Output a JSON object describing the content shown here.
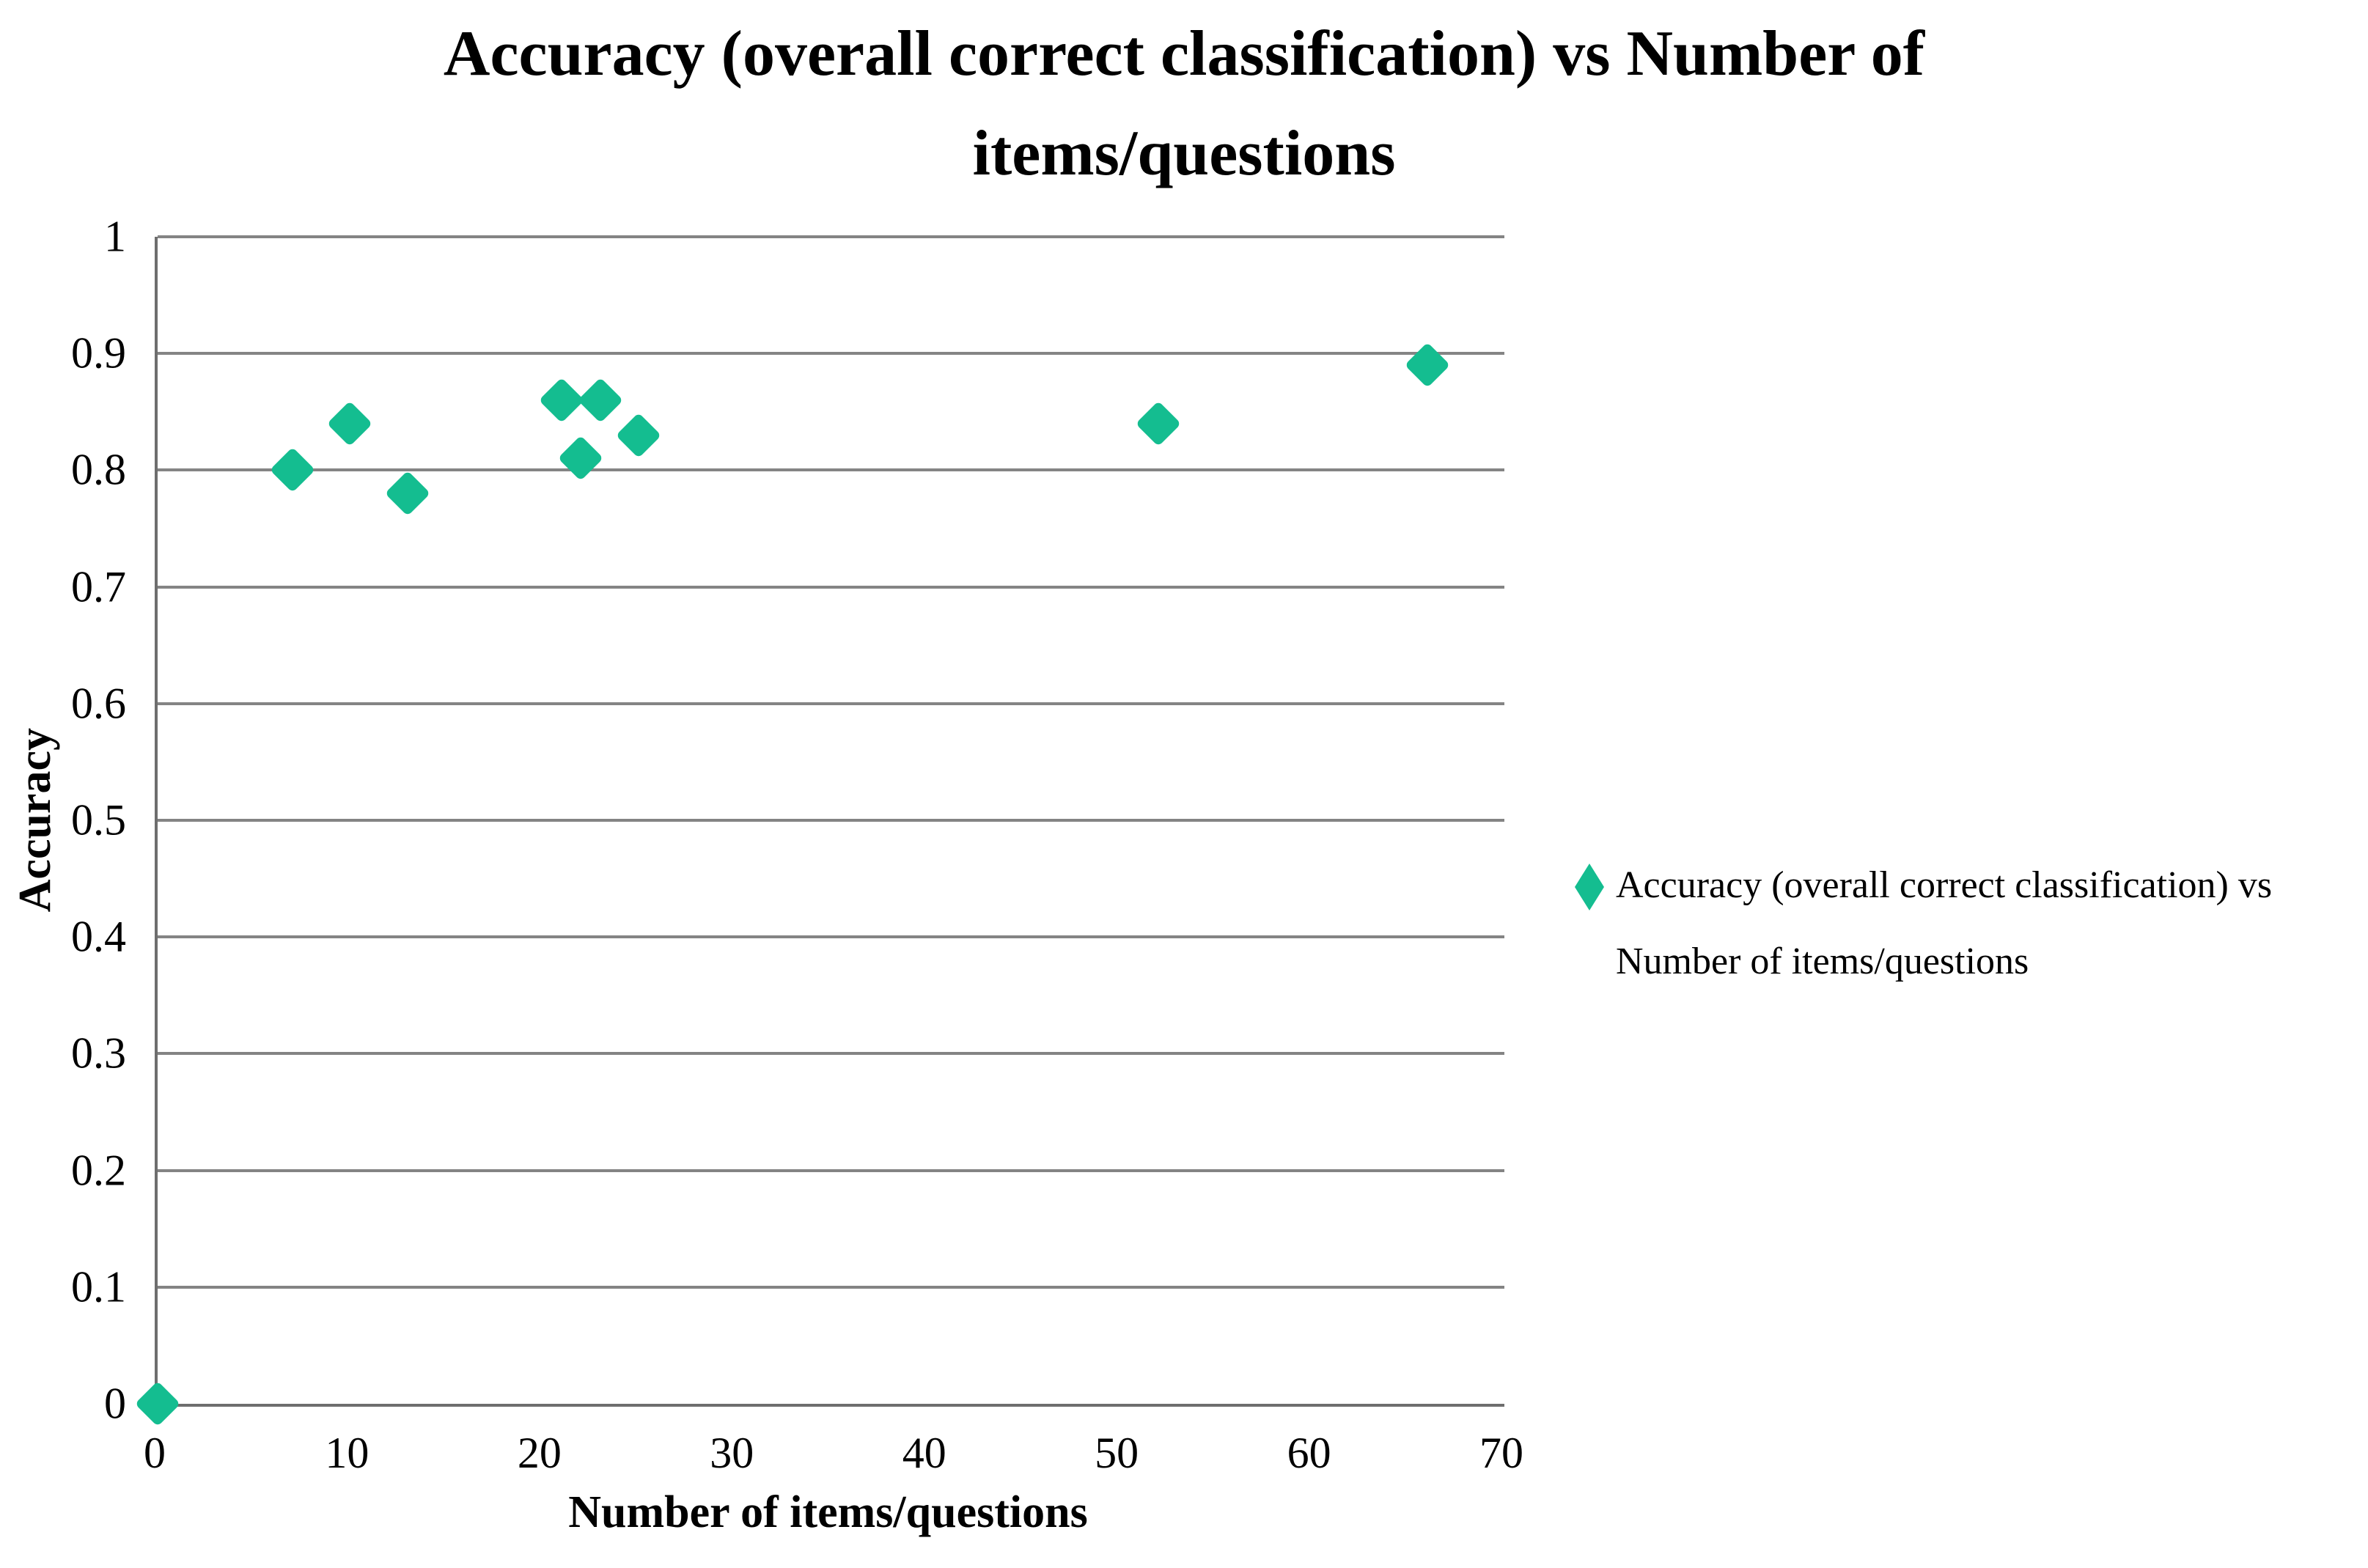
{
  "title": {
    "lines": [
      "Accuracy (overall correct classification) vs Number of",
      "items/questions"
    ]
  },
  "legend": {
    "lines": [
      "Accuracy (overall correct classification) vs",
      "Number of items/questions"
    ]
  },
  "chart_data": {
    "type": "scatter",
    "title": "Accuracy (overall correct classification) vs Number of items/questions",
    "xlabel": "Number of items/questions",
    "ylabel": "Accuracy",
    "xlim": [
      0,
      70
    ],
    "ylim": [
      0,
      1
    ],
    "x_ticks": [
      0,
      10,
      20,
      30,
      40,
      50,
      60,
      70
    ],
    "x_tick_labels": [
      "0",
      "10",
      "20",
      "30",
      "40",
      "50",
      "60",
      "70"
    ],
    "y_ticks": [
      0,
      0.1,
      0.2,
      0.3,
      0.4,
      0.5,
      0.6,
      0.7,
      0.8,
      0.9,
      1
    ],
    "y_tick_labels": [
      "0",
      "0.1",
      "0.2",
      "0.3",
      "0.4",
      "0.5",
      "0.6",
      "0.7",
      "0.8",
      "0.9",
      "1"
    ],
    "grid": "horizontal",
    "legend_position": "right",
    "series": [
      {
        "name": "Accuracy (overall correct classification) vs Number of items/questions",
        "marker": "diamond",
        "color": "#14BD90",
        "points": [
          [
            0,
            0
          ],
          [
            7,
            0.8
          ],
          [
            10,
            0.84
          ],
          [
            13,
            0.78
          ],
          [
            21,
            0.86
          ],
          [
            22,
            0.81
          ],
          [
            23,
            0.86
          ],
          [
            25,
            0.83
          ],
          [
            52,
            0.84
          ],
          [
            66,
            0.89
          ]
        ]
      }
    ],
    "colors": {
      "gridline": "#848484",
      "axis": "#6E6E6E",
      "text": "#000000",
      "background": "#FFFFFF"
    }
  }
}
